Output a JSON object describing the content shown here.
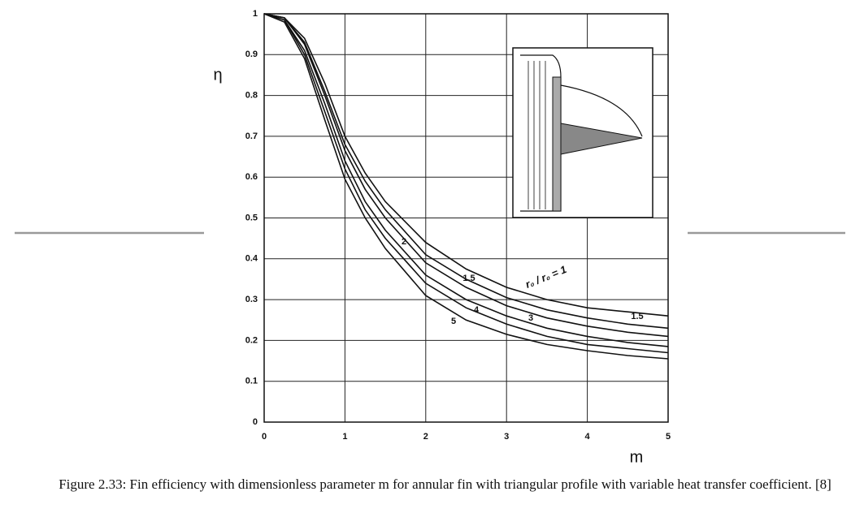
{
  "chart_data": {
    "type": "line",
    "x_label": "m",
    "y_label": "η",
    "caption": "Figure 2.33: Fin efficiency with dimensionless parameter m for annular fin with triangular profile with variable heat transfer coefficient. [8]",
    "x": [
      0,
      0.25,
      0.5,
      0.75,
      1,
      1.25,
      1.5,
      2,
      2.5,
      3,
      3.5,
      4,
      4.5,
      5
    ],
    "series": [
      {
        "name": "r₀ / r₀ = 1",
        "color": "#111111",
        "values": [
          1,
          0.99,
          0.94,
          0.83,
          0.7,
          0.61,
          0.54,
          0.44,
          0.375,
          0.33,
          0.3,
          0.28,
          0.27,
          0.26
        ]
      },
      {
        "name": "1.5",
        "color": "#111111",
        "values": [
          1,
          0.99,
          0.93,
          0.81,
          0.68,
          0.59,
          0.52,
          0.41,
          0.35,
          0.305,
          0.275,
          0.255,
          0.24,
          0.23
        ]
      },
      {
        "name": "2",
        "color": "#111111",
        "values": [
          1,
          0.99,
          0.925,
          0.8,
          0.665,
          0.57,
          0.5,
          0.39,
          0.33,
          0.285,
          0.255,
          0.235,
          0.22,
          0.21
        ]
      },
      {
        "name": "3",
        "color": "#111111",
        "values": [
          1,
          0.985,
          0.91,
          0.78,
          0.64,
          0.54,
          0.47,
          0.36,
          0.3,
          0.26,
          0.23,
          0.21,
          0.195,
          0.185
        ]
      },
      {
        "name": "4",
        "color": "#111111",
        "values": [
          1,
          0.985,
          0.9,
          0.76,
          0.62,
          0.52,
          0.45,
          0.34,
          0.28,
          0.24,
          0.21,
          0.19,
          0.18,
          0.17
        ]
      },
      {
        "name": "5",
        "color": "#111111",
        "values": [
          1,
          0.98,
          0.89,
          0.74,
          0.595,
          0.5,
          0.425,
          0.31,
          0.25,
          0.215,
          0.19,
          0.175,
          0.163,
          0.155
        ]
      }
    ],
    "annotations": [
      "1.5"
    ],
    "xlim": [
      0,
      5
    ],
    "ylim": [
      0,
      1
    ],
    "xticks": [
      0,
      1,
      2,
      3,
      4,
      5
    ],
    "yticks": [
      0,
      0.1,
      0.2,
      0.3,
      0.4,
      0.5,
      0.6,
      0.7,
      0.8,
      0.9,
      1
    ],
    "grid": true
  }
}
